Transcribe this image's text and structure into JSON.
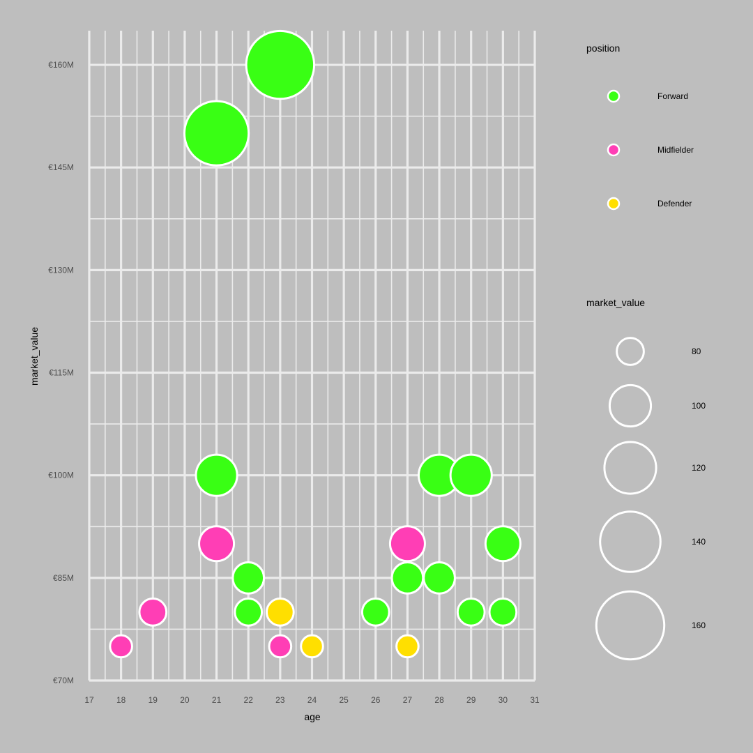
{
  "chart_data": {
    "type": "scatter",
    "xlabel": "age",
    "ylabel": "market_value",
    "xlim": [
      17,
      31
    ],
    "ylim": [
      70,
      165
    ],
    "x_ticks": [
      17,
      18,
      19,
      20,
      21,
      22,
      23,
      24,
      25,
      26,
      27,
      28,
      29,
      30,
      31
    ],
    "x_tick_labels": [
      "17",
      "18",
      "19",
      "20",
      "21",
      "22",
      "23",
      "24",
      "25",
      "26",
      "27",
      "28",
      "29",
      "30",
      "31"
    ],
    "y_ticks": [
      70,
      85,
      100,
      115,
      130,
      145,
      160
    ],
    "y_tick_labels": [
      "€70M",
      "€85M",
      "€100M",
      "€115M",
      "€130M",
      "€145M",
      "€160M"
    ],
    "grid": true,
    "legend_position": "right",
    "color_legend": {
      "title": "position",
      "entries": [
        {
          "label": "Forward",
          "color": "#39ff14"
        },
        {
          "label": "Midfielder",
          "color": "#ff3eb5"
        },
        {
          "label": "Defender",
          "color": "#ffdf00"
        }
      ]
    },
    "size_legend": {
      "title": "market_value",
      "entries": [
        {
          "label": "80",
          "value": 80
        },
        {
          "label": "100",
          "value": 100
        },
        {
          "label": "120",
          "value": 120
        },
        {
          "label": "140",
          "value": 140
        },
        {
          "label": "160",
          "value": 160
        }
      ]
    },
    "series": [
      {
        "name": "Forward",
        "color": "#39ff14",
        "points": [
          {
            "x": 23,
            "y": 160
          },
          {
            "x": 21,
            "y": 150
          },
          {
            "x": 21,
            "y": 100
          },
          {
            "x": 28,
            "y": 100
          },
          {
            "x": 29,
            "y": 100
          },
          {
            "x": 30,
            "y": 90
          },
          {
            "x": 22,
            "y": 85
          },
          {
            "x": 27,
            "y": 85
          },
          {
            "x": 28,
            "y": 85
          },
          {
            "x": 22,
            "y": 80
          },
          {
            "x": 26,
            "y": 80
          },
          {
            "x": 29,
            "y": 80
          },
          {
            "x": 30,
            "y": 80
          }
        ]
      },
      {
        "name": "Midfielder",
        "color": "#ff3eb5",
        "points": [
          {
            "x": 21,
            "y": 90
          },
          {
            "x": 27,
            "y": 90
          },
          {
            "x": 19,
            "y": 80
          },
          {
            "x": 18,
            "y": 75
          },
          {
            "x": 23,
            "y": 75
          }
        ]
      },
      {
        "name": "Defender",
        "color": "#ffdf00",
        "points": [
          {
            "x": 23,
            "y": 80
          },
          {
            "x": 24,
            "y": 75
          },
          {
            "x": 27,
            "y": 75
          }
        ]
      }
    ]
  }
}
